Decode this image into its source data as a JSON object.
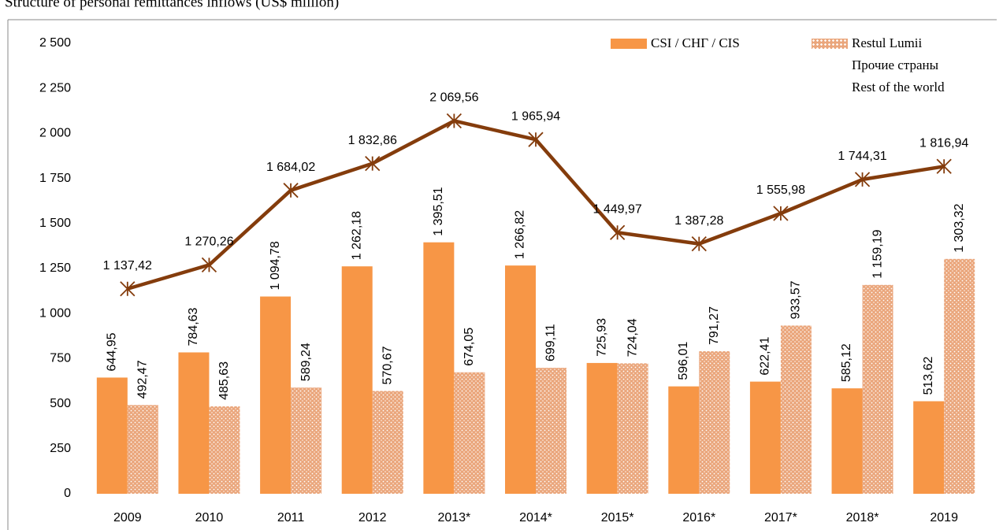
{
  "chart_data": {
    "type": "bar",
    "title": "Structure of personal remittances inflows (US$ million)",
    "categories": [
      "2009",
      "2010",
      "2011",
      "2012",
      "2013*",
      "2014*",
      "2015*",
      "2016*",
      "2017*",
      "2018*",
      "2019"
    ],
    "series": [
      {
        "name": "CSI / СНГ / CIS",
        "type": "bar",
        "color": "#f79646",
        "values": [
          644.95,
          784.63,
          1094.78,
          1262.18,
          1395.51,
          1266.82,
          725.93,
          596.01,
          622.41,
          585.12,
          513.62
        ],
        "value_labels": [
          "644,95",
          "784,63",
          "1 094,78",
          "1 262,18",
          "1 395,51",
          "1 266,82",
          "725,93",
          "596,01",
          "622,41",
          "585,12",
          "513,62"
        ]
      },
      {
        "name": "Restul Lumii\nПрочие страны\nRest of the world",
        "type": "bar",
        "color": "#eaa67c",
        "pattern": "dots",
        "values": [
          492.47,
          485.63,
          589.24,
          570.67,
          674.05,
          699.11,
          724.04,
          791.27,
          933.57,
          1159.19,
          1303.32
        ],
        "value_labels": [
          "492,47",
          "485,63",
          "589,24",
          "570,67",
          "674,05",
          "699,11",
          "724,04",
          "791,27",
          "933,57",
          "1 159,19",
          "1 303,32"
        ]
      },
      {
        "type": "line",
        "color": "#843c0c",
        "marker": "asterisk",
        "values": [
          1137.42,
          1270.26,
          1684.02,
          1832.86,
          2069.56,
          1965.94,
          1449.97,
          1387.28,
          1555.98,
          1744.31,
          1816.94
        ],
        "value_labels": [
          "1 137,42",
          "1 270,26",
          "1 684,02",
          "1 832,86",
          "2 069,56",
          "1 965,94",
          "1 449,97",
          "1 387,28",
          "1 555,98",
          "1 744,31",
          "1 816,94"
        ]
      }
    ],
    "ylim": [
      0,
      2500
    ],
    "yticks": [
      0,
      250,
      500,
      750,
      {
        "value": 1000,
        "label": "1 000"
      },
      {
        "value": 1250,
        "label": "1 250"
      },
      {
        "value": 1500,
        "label": "1 500"
      },
      {
        "value": 1750,
        "label": "1 750"
      },
      {
        "value": 2000,
        "label": "2 000"
      },
      {
        "value": 2250,
        "label": "2 250"
      },
      {
        "value": 2500,
        "label": "2 500"
      }
    ],
    "legend": "top-right"
  }
}
